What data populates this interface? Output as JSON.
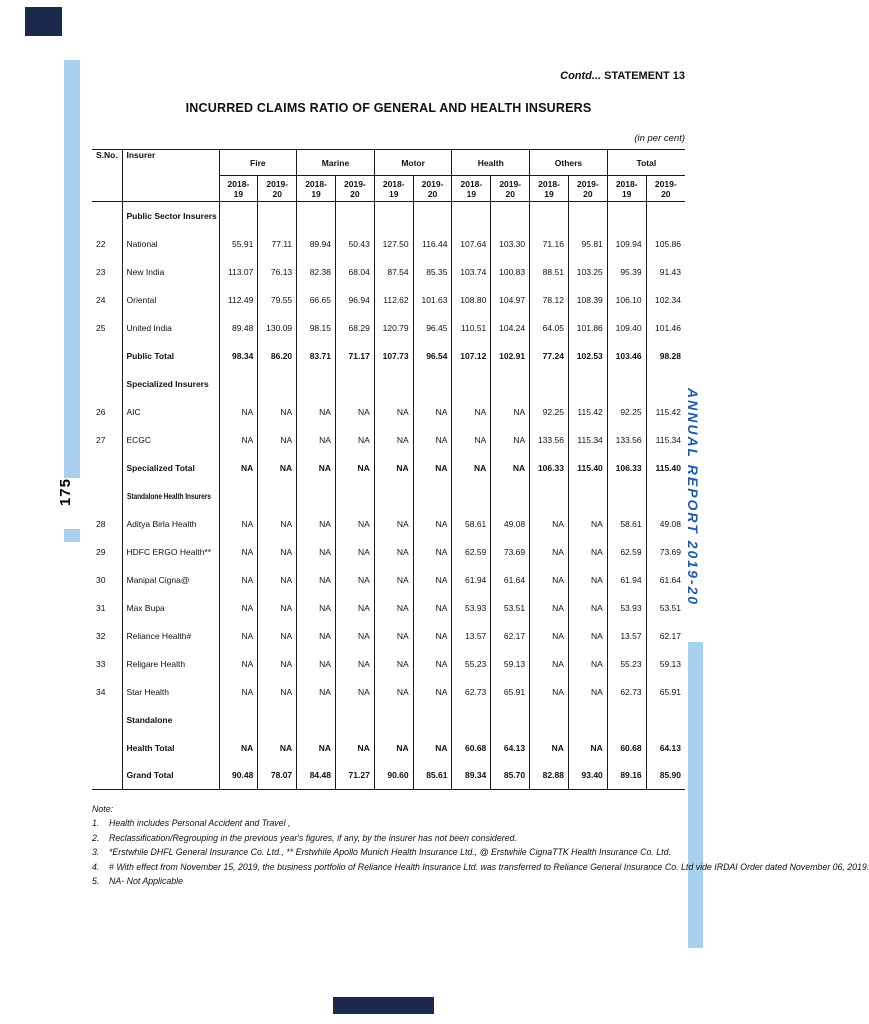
{
  "page": {
    "contd": "Contd...",
    "statement": " STATEMENT 13",
    "title": "INCURRED CLAIMS RATIO OF GENERAL AND HEALTH INSURERS",
    "unit_note": "(in per cent)",
    "side_text": "ANNUAL REPORT 2019-20",
    "page_number": "175"
  },
  "colors": {
    "strip_blue": "#a8d1f0",
    "navy": "#1b2a4c",
    "side_text_blue": "#1d5ca8"
  },
  "table": {
    "col_sno": "S.No.",
    "col_insurer": "Insurer",
    "groups": [
      "Fire",
      "Marine",
      "Motor",
      "Health",
      "Others",
      "Total"
    ],
    "years": [
      "2018-19",
      "2019-20"
    ],
    "rows": [
      {
        "type": "section",
        "label": "Public Sector Insurers"
      },
      {
        "type": "data",
        "sno": "22",
        "label": "National",
        "values": [
          "55.91",
          "77.11",
          "89.94",
          "50.43",
          "127.50",
          "116.44",
          "107.64",
          "103.30",
          "71.16",
          "95.81",
          "109.94",
          "105.86"
        ]
      },
      {
        "type": "data",
        "sno": "23",
        "label": "New India",
        "values": [
          "113.07",
          "76.13",
          "82.38",
          "68.04",
          "87.54",
          "85.35",
          "103.74",
          "100.83",
          "88.51",
          "103.25",
          "95.39",
          "91.43"
        ]
      },
      {
        "type": "data",
        "sno": "24",
        "label": "Oriental",
        "values": [
          "112.49",
          "79.55",
          "66.65",
          "96.94",
          "112.62",
          "101.63",
          "108.80",
          "104.97",
          "78.12",
          "108.39",
          "106.10",
          "102.34"
        ]
      },
      {
        "type": "data",
        "sno": "25",
        "label": "United India",
        "values": [
          "89.48",
          "130.09",
          "98.15",
          "68.29",
          "120.79",
          "96.45",
          "110.51",
          "104.24",
          "64.05",
          "101.86",
          "109.40",
          "101.46"
        ]
      },
      {
        "type": "total",
        "label": "Public Total",
        "values": [
          "98.34",
          "86.20",
          "83.71",
          "71.17",
          "107.73",
          "96.54",
          "107.12",
          "102.91",
          "77.24",
          "102.53",
          "103.46",
          "98.28"
        ]
      },
      {
        "type": "section",
        "label": "Specialized Insurers"
      },
      {
        "type": "data",
        "sno": "26",
        "label": "AIC",
        "values": [
          "NA",
          "NA",
          "NA",
          "NA",
          "NA",
          "NA",
          "NA",
          "NA",
          "92.25",
          "115.42",
          "92.25",
          "115.42"
        ]
      },
      {
        "type": "data",
        "sno": "27",
        "label": "ECGC",
        "values": [
          "NA",
          "NA",
          "NA",
          "NA",
          "NA",
          "NA",
          "NA",
          "NA",
          "133.56",
          "115.34",
          "133.56",
          "115.34"
        ]
      },
      {
        "type": "total",
        "label": "Specialized Total",
        "values": [
          "NA",
          "NA",
          "NA",
          "NA",
          "NA",
          "NA",
          "NA",
          "NA",
          "106.33",
          "115.40",
          "106.33",
          "115.40"
        ]
      },
      {
        "type": "section",
        "label": "Standalone Health Insurers"
      },
      {
        "type": "data",
        "sno": "28",
        "label": "Aditya Birla Health",
        "values": [
          "NA",
          "NA",
          "NA",
          "NA",
          "NA",
          "NA",
          "58.61",
          "49.08",
          "NA",
          "NA",
          "58.61",
          "49.08"
        ]
      },
      {
        "type": "data",
        "sno": "29",
        "label": "HDFC ERGO Health**",
        "values": [
          "NA",
          "NA",
          "NA",
          "NA",
          "NA",
          "NA",
          "62.59",
          "73.69",
          "NA",
          "NA",
          "62.59",
          "73.69"
        ]
      },
      {
        "type": "data",
        "sno": "30",
        "label": "Manipal Cigna@",
        "values": [
          "NA",
          "NA",
          "NA",
          "NA",
          "NA",
          "NA",
          "61.94",
          "61.64",
          "NA",
          "NA",
          "61.94",
          "61.64"
        ]
      },
      {
        "type": "data",
        "sno": "31",
        "label": "Max Bupa",
        "values": [
          "NA",
          "NA",
          "NA",
          "NA",
          "NA",
          "NA",
          "53.93",
          "53.51",
          "NA",
          "NA",
          "53.93",
          "53.51"
        ]
      },
      {
        "type": "data",
        "sno": "32",
        "label": "Reliance Health#",
        "values": [
          "NA",
          "NA",
          "NA",
          "NA",
          "NA",
          "NA",
          "13.57",
          "62.17",
          "NA",
          "NA",
          "13.57",
          "62.17"
        ]
      },
      {
        "type": "data",
        "sno": "33",
        "label": "Religare Health",
        "values": [
          "NA",
          "NA",
          "NA",
          "NA",
          "NA",
          "NA",
          "55.23",
          "59.13",
          "NA",
          "NA",
          "55.23",
          "59.13"
        ]
      },
      {
        "type": "data",
        "sno": "34",
        "label": "Star Health",
        "values": [
          "NA",
          "NA",
          "NA",
          "NA",
          "NA",
          "NA",
          "62.73",
          "65.91",
          "NA",
          "NA",
          "62.73",
          "65.91"
        ]
      },
      {
        "type": "section",
        "label": "Standalone"
      },
      {
        "type": "total",
        "label": "Health Total",
        "values": [
          "NA",
          "NA",
          "NA",
          "NA",
          "NA",
          "NA",
          "60.68",
          "64.13",
          "NA",
          "NA",
          "60.68",
          "64.13"
        ]
      },
      {
        "type": "total",
        "label": "Grand Total",
        "values": [
          "90.48",
          "78.07",
          "84.48",
          "71.27",
          "90.60",
          "85.61",
          "89.34",
          "85.70",
          "82.88",
          "93.40",
          "89.16",
          "85.90"
        ]
      }
    ]
  },
  "notes": {
    "heading": "Note:",
    "items": [
      {
        "num": "1.",
        "text": "Health includes Personal Accident and Travel ,"
      },
      {
        "num": "2.",
        "text": "Reclassification/Regrouping in the previous year's figures, if any, by the insurer has not been considered."
      },
      {
        "num": "3.",
        "text": "*Erstwhile DHFL General Insurance Co. Ltd., ** Erstwhile Apollo Munich Health Insurance Ltd., @ Erstwhile CignaTTK Health Insurance Co. Ltd."
      },
      {
        "num": "4.",
        "text": "# With effect from November 15, 2019, the business portfolio of Reliance Health Insurance Ltd. was transferred to Reliance General Insurance Co. Ltd vide IRDAI Order dated November 06, 2019."
      },
      {
        "num": "5.",
        "text": "NA- Not Applicable"
      }
    ]
  }
}
